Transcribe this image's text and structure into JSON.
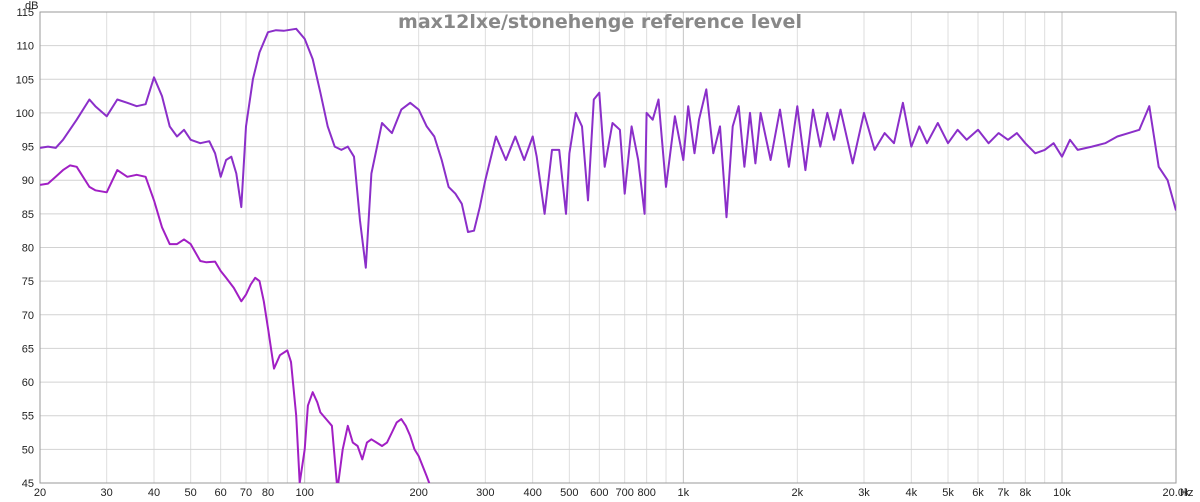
{
  "chart_data": {
    "type": "line",
    "title": "max12lxe/stonehenge reference level",
    "ylabel": "dB",
    "x_unit": "Hz",
    "x_scale": "log",
    "xlim": [
      20,
      20000
    ],
    "ylim": [
      45,
      115
    ],
    "grid": true,
    "yticks": [
      45,
      50,
      55,
      60,
      65,
      70,
      75,
      80,
      85,
      90,
      95,
      100,
      105,
      110,
      115
    ],
    "xticks": [
      {
        "value": 20,
        "label": "20"
      },
      {
        "value": 30,
        "label": "30"
      },
      {
        "value": 40,
        "label": "40"
      },
      {
        "value": 50,
        "label": "50"
      },
      {
        "value": 60,
        "label": "60"
      },
      {
        "value": 70,
        "label": "70"
      },
      {
        "value": 80,
        "label": "80"
      },
      {
        "value": 100,
        "label": "100"
      },
      {
        "value": 200,
        "label": "200"
      },
      {
        "value": 300,
        "label": "300"
      },
      {
        "value": 400,
        "label": "400"
      },
      {
        "value": 500,
        "label": "500"
      },
      {
        "value": 600,
        "label": "600"
      },
      {
        "value": 700,
        "label": "700"
      },
      {
        "value": 800,
        "label": "800"
      },
      {
        "value": 1000,
        "label": "1k"
      },
      {
        "value": 2000,
        "label": "2k"
      },
      {
        "value": 3000,
        "label": "3k"
      },
      {
        "value": 4000,
        "label": "4k"
      },
      {
        "value": 5000,
        "label": "5k"
      },
      {
        "value": 6000,
        "label": "6k"
      },
      {
        "value": 7000,
        "label": "7k"
      },
      {
        "value": 8000,
        "label": "8k"
      },
      {
        "value": 10000,
        "label": "10k"
      },
      {
        "value": 20000,
        "label": "20.0k"
      }
    ],
    "series": [
      {
        "color": "#8b2fc9",
        "x": [
          20,
          21,
          22,
          23,
          25,
          27,
          28,
          30,
          32,
          34,
          36,
          38,
          40,
          42,
          44,
          46,
          48,
          50,
          53,
          56,
          58,
          60,
          62,
          64,
          66,
          68,
          70,
          73,
          76,
          80,
          84,
          88,
          95,
          100,
          105,
          110,
          115,
          120,
          125,
          130,
          135,
          140,
          145,
          150,
          160,
          170,
          180,
          190,
          200,
          210,
          220,
          230,
          240,
          250,
          260,
          270,
          280,
          290,
          300,
          320,
          340,
          360,
          380,
          400,
          410,
          430,
          450,
          470,
          490,
          500,
          520,
          540,
          560,
          580,
          600,
          620,
          650,
          680,
          700,
          730,
          760,
          790,
          800,
          830,
          860,
          900,
          950,
          1000,
          1030,
          1070,
          1100,
          1150,
          1200,
          1250,
          1300,
          1350,
          1400,
          1450,
          1500,
          1550,
          1600,
          1700,
          1800,
          1900,
          2000,
          2100,
          2200,
          2300,
          2400,
          2500,
          2600,
          2800,
          3000,
          3200,
          3400,
          3600,
          3800,
          4000,
          4200,
          4400,
          4700,
          5000,
          5300,
          5600,
          6000,
          6400,
          6800,
          7200,
          7600,
          8000,
          8500,
          9000,
          9500,
          10000,
          10500,
          11000,
          12000,
          13000,
          14000,
          15000,
          16000,
          17000,
          18000,
          19000,
          20000
        ],
        "y": [
          94.8,
          95.0,
          94.8,
          96.0,
          99.0,
          102.0,
          101.0,
          99.5,
          102.0,
          101.5,
          101.0,
          101.3,
          105.3,
          102.5,
          98.0,
          96.5,
          97.5,
          96.0,
          95.5,
          95.8,
          94.0,
          90.5,
          93.0,
          93.5,
          91.0,
          86.0,
          98.0,
          105.0,
          109.0,
          112.0,
          112.3,
          112.2,
          112.5,
          111.0,
          108.0,
          103.0,
          98.0,
          95.0,
          94.5,
          95.0,
          93.5,
          84.0,
          77.0,
          91.0,
          98.5,
          97.0,
          100.5,
          101.5,
          100.5,
          98.0,
          96.5,
          93.0,
          89.0,
          88.0,
          86.5,
          82.3,
          82.5,
          86.0,
          90.0,
          96.5,
          93.0,
          96.5,
          93.0,
          96.5,
          93.5,
          85.0,
          94.5,
          94.5,
          85.0,
          94.0,
          100.0,
          98.0,
          87.0,
          102.0,
          103.0,
          92.0,
          98.5,
          97.5,
          88.0,
          98.0,
          93.0,
          85.0,
          100.0,
          99.0,
          102.0,
          89.0,
          99.5,
          93.0,
          101.0,
          94.0,
          99.0,
          103.5,
          94.0,
          98.0,
          84.5,
          98.0,
          101.0,
          92.0,
          100.0,
          92.5,
          100.0,
          93.0,
          100.5,
          92.0,
          101.0,
          91.5,
          100.5,
          95.0,
          100.0,
          96.0,
          100.5,
          92.5,
          100.0,
          94.5,
          97.0,
          95.5,
          101.5,
          95.0,
          98.0,
          95.5,
          98.5,
          95.5,
          97.5,
          96.0,
          97.5,
          95.5,
          97.0,
          96.0,
          97.0,
          95.5,
          94.0,
          94.5,
          95.5,
          93.5,
          96.0,
          94.5,
          95.0,
          95.5,
          96.5,
          97.0,
          97.5,
          101.0,
          92.0,
          90.0,
          85.5
        ]
      },
      {
        "color": "#a11fc4",
        "x": [
          20,
          21,
          22,
          23,
          24,
          25,
          27,
          28,
          30,
          32,
          34,
          36,
          38,
          40,
          42,
          44,
          46,
          48,
          50,
          53,
          55,
          58,
          60,
          62,
          65,
          68,
          70,
          72,
          74,
          76,
          78,
          80,
          83,
          86,
          90,
          92,
          95,
          97,
          100,
          102,
          105,
          108,
          110,
          114,
          118,
          122,
          126,
          130,
          134,
          138,
          142,
          146,
          150,
          155,
          160,
          165,
          170,
          175,
          180,
          185,
          190,
          195,
          200,
          210,
          220
        ],
        "y": [
          89.3,
          89.5,
          90.5,
          91.5,
          92.2,
          92.0,
          89.0,
          88.5,
          88.2,
          91.5,
          90.5,
          90.8,
          90.5,
          87.0,
          83.0,
          80.5,
          80.5,
          81.2,
          80.5,
          78.0,
          77.8,
          77.9,
          76.5,
          75.5,
          74.0,
          72.0,
          73.0,
          74.5,
          75.5,
          75.0,
          72.0,
          68.0,
          62.0,
          64.0,
          64.7,
          63.0,
          55.0,
          45.0,
          50.0,
          56.5,
          58.5,
          57.0,
          55.5,
          54.5,
          53.5,
          44.0,
          50.0,
          53.5,
          51.0,
          50.5,
          48.5,
          51.0,
          51.5,
          51.0,
          50.5,
          51.0,
          52.5,
          54.0,
          54.5,
          53.5,
          52.0,
          50.0,
          49.0,
          46.0,
          43.0
        ]
      }
    ]
  }
}
